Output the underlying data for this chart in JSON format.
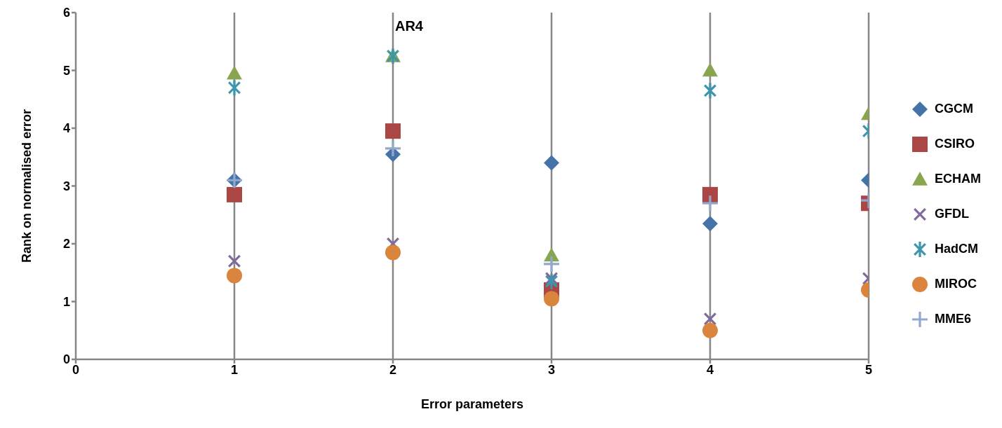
{
  "chart_data": {
    "type": "scatter",
    "title": "AR4",
    "xlabel": "Error parameters",
    "ylabel": "Rank on normalised error",
    "x": [
      1,
      2,
      3,
      4,
      5
    ],
    "xlim": [
      0,
      5
    ],
    "xticks": [
      0,
      1,
      2,
      3,
      4,
      5
    ],
    "ylim": [
      0,
      6
    ],
    "yticks": [
      0,
      1,
      2,
      3,
      4,
      5,
      6
    ],
    "grid": "x",
    "legend": "right",
    "series": [
      {
        "name": "CGCM",
        "color": "#4572a7",
        "marker": "diamond",
        "values": [
          3.1,
          3.55,
          3.4,
          2.35,
          3.1
        ]
      },
      {
        "name": "CSIRO",
        "color": "#aa4643",
        "marker": "square",
        "values": [
          2.85,
          3.95,
          1.2,
          2.85,
          2.7
        ]
      },
      {
        "name": "ECHAM",
        "color": "#89a54e",
        "marker": "triangle",
        "values": [
          4.95,
          5.25,
          1.8,
          5.0,
          4.25
        ]
      },
      {
        "name": "GFDL",
        "color": "#80699b",
        "marker": "cross",
        "values": [
          1.7,
          2.0,
          1.4,
          0.7,
          1.4
        ]
      },
      {
        "name": "HadCM",
        "color": "#3d96ae",
        "marker": "star",
        "values": [
          4.7,
          5.25,
          1.35,
          4.65,
          3.95
        ]
      },
      {
        "name": "MIROC",
        "color": "#db843d",
        "marker": "circle",
        "values": [
          1.45,
          1.85,
          1.05,
          0.5,
          1.2
        ]
      },
      {
        "name": "MME6",
        "color": "#92a8cd",
        "marker": "plus",
        "values": [
          3.1,
          3.65,
          1.65,
          2.7,
          2.75
        ]
      }
    ]
  }
}
